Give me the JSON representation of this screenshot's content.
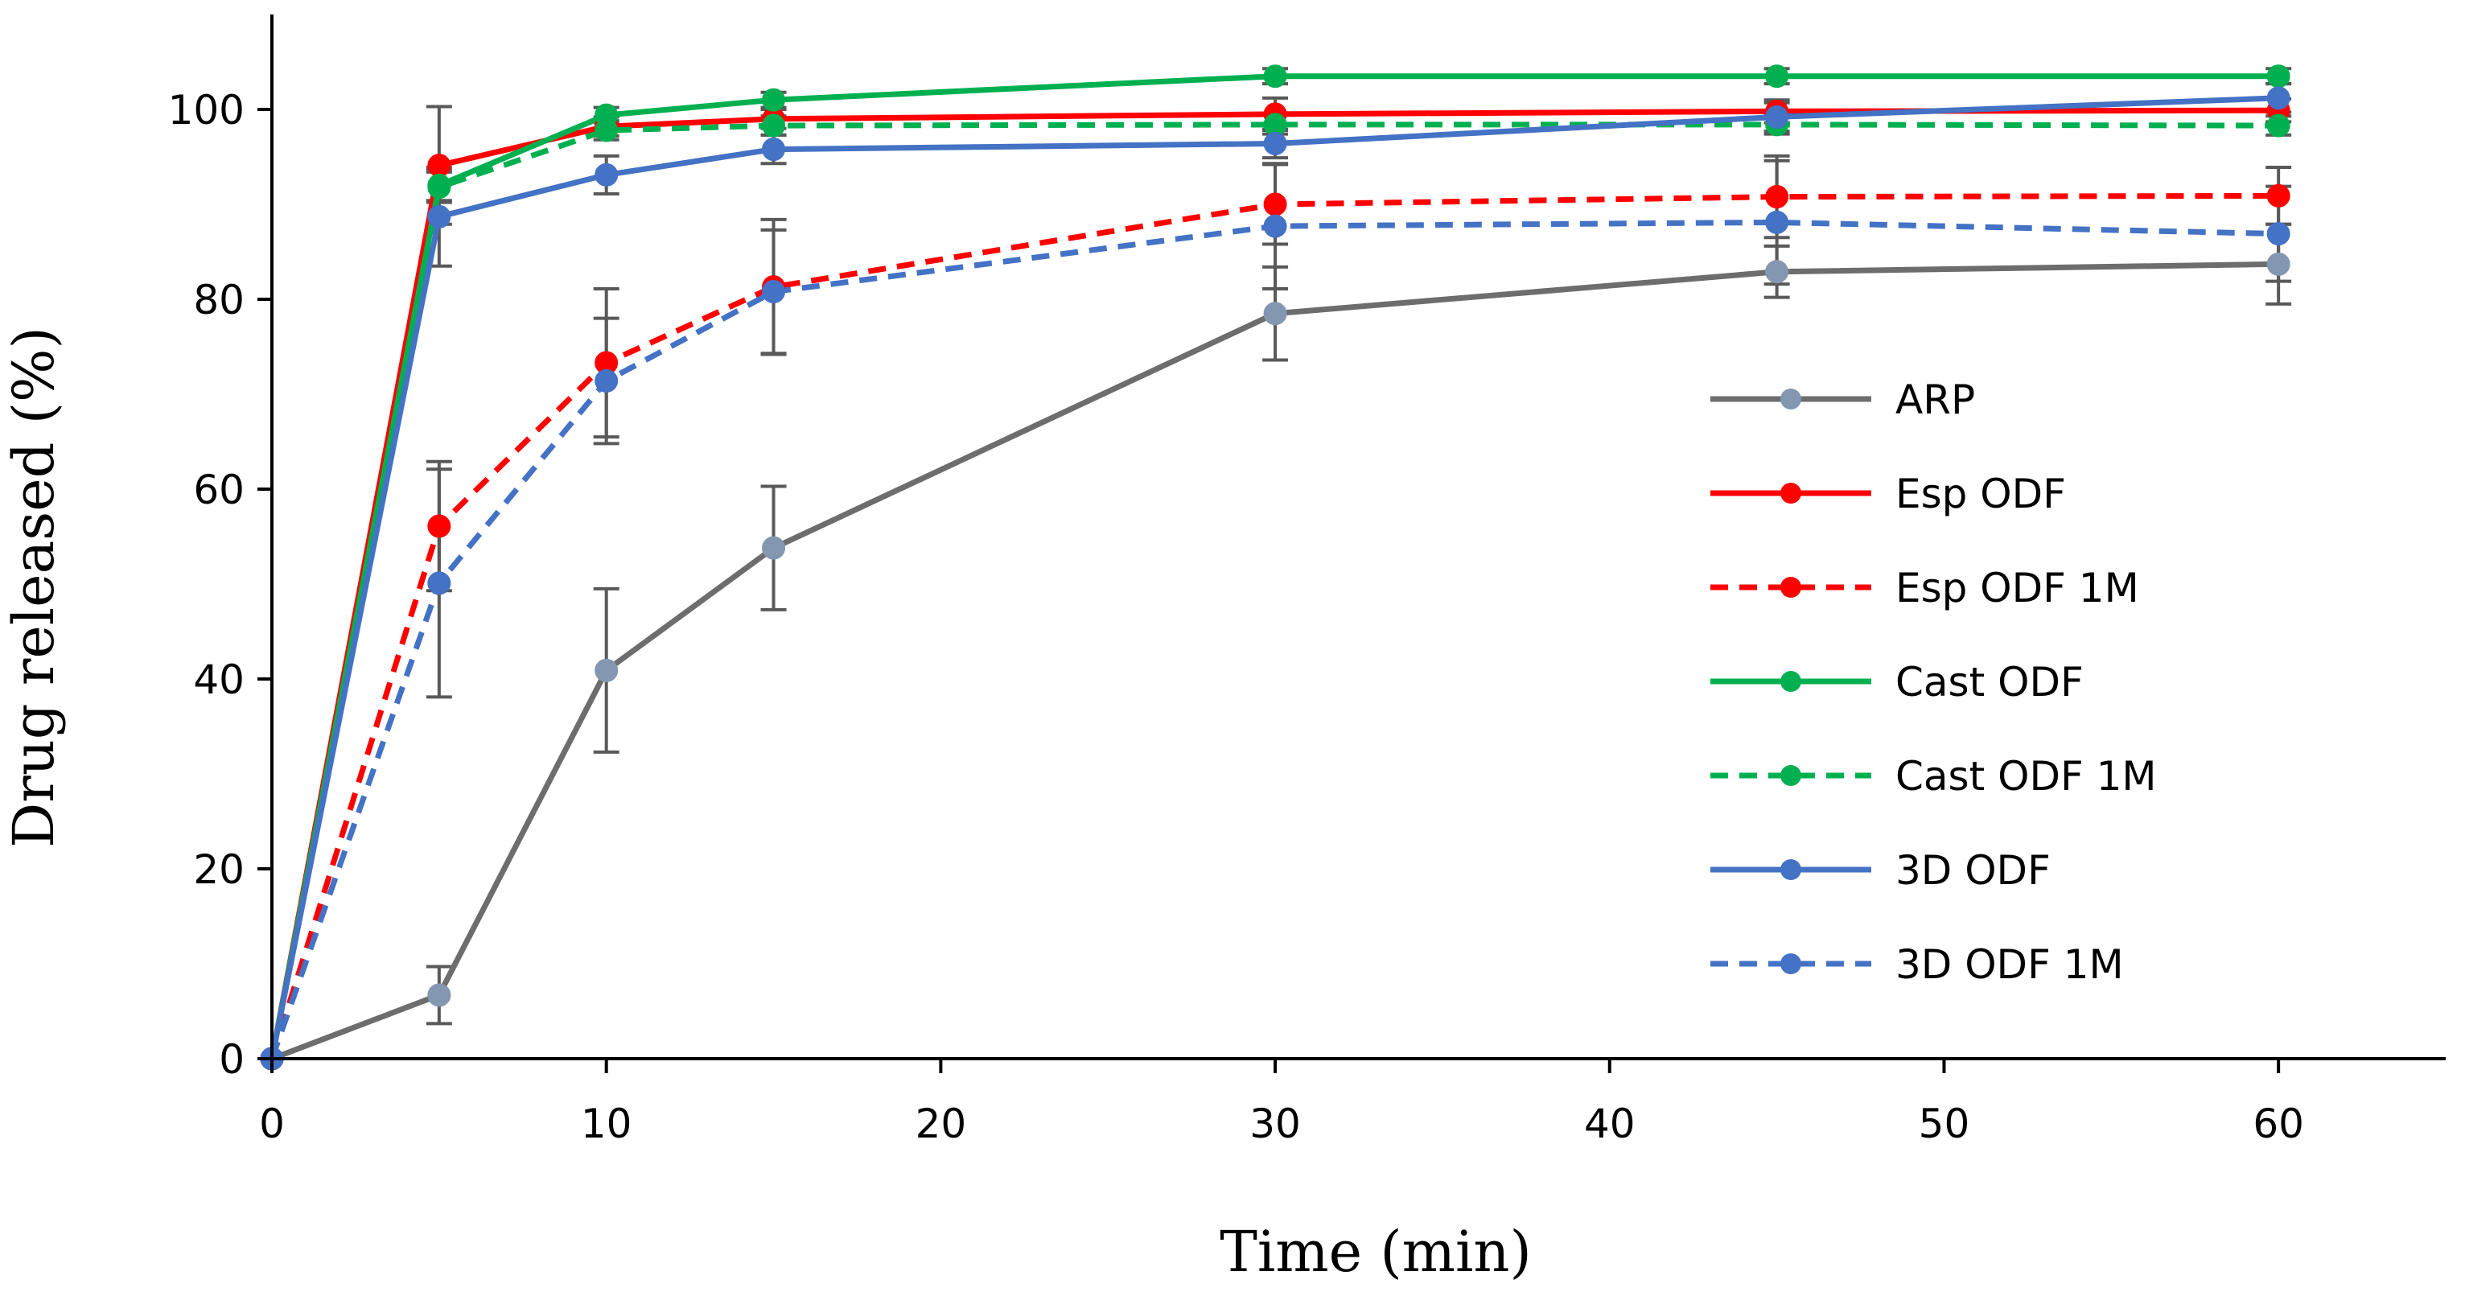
{
  "chart_data": {
    "type": "line",
    "title": "",
    "xlabel": "Time (min)",
    "ylabel": "Drug released (%)",
    "x_ticks": [
      0,
      10,
      20,
      30,
      40,
      50,
      60
    ],
    "y_ticks": [
      0,
      20,
      40,
      60,
      80,
      100
    ],
    "xlim": [
      0,
      65
    ],
    "ylim": [
      0,
      110
    ],
    "grid": false,
    "legend_position": "right",
    "series": [
      {
        "name": "ARP",
        "color": "#6d6d6d",
        "marker_color": "#8497b0",
        "dash": "solid",
        "points": [
          [
            0,
            0
          ],
          [
            5,
            6.7
          ],
          [
            10,
            40.9
          ],
          [
            15,
            53.8
          ],
          [
            30,
            78.5
          ],
          [
            45,
            82.9
          ],
          [
            60,
            83.7
          ]
        ],
        "errors": [
          0,
          3,
          8.6,
          6.5,
          4.9,
          2.7,
          4.2
        ]
      },
      {
        "name": "Esp ODF",
        "color": "#ff0000",
        "marker_color": "#ff0000",
        "dash": "solid",
        "points": [
          [
            0,
            0
          ],
          [
            5,
            94.1
          ],
          [
            10,
            98.2
          ],
          [
            15,
            99
          ],
          [
            30,
            99.5
          ],
          [
            45,
            99.8
          ],
          [
            60,
            99.9
          ]
        ],
        "errors": [
          0,
          6.2,
          1,
          1,
          1.7,
          1.2,
          1.2
        ]
      },
      {
        "name": "Esp ODF 1M",
        "color": "#ff0000",
        "marker_color": "#ff0000",
        "dash": "dashed",
        "points": [
          [
            0,
            0
          ],
          [
            5,
            56.1
          ],
          [
            10,
            73.3
          ],
          [
            15,
            81.3
          ],
          [
            30,
            90
          ],
          [
            45,
            90.8
          ],
          [
            60,
            90.9
          ]
        ],
        "errors": [
          0,
          6.8,
          7.8,
          7.1,
          4.2,
          4.3,
          3
        ]
      },
      {
        "name": "Cast ODF",
        "color": "#00b050",
        "marker_color": "#00b050",
        "dash": "solid",
        "points": [
          [
            0,
            0
          ],
          [
            5,
            92
          ],
          [
            10,
            99.4
          ],
          [
            15,
            101
          ],
          [
            30,
            103.5
          ],
          [
            45,
            103.5
          ],
          [
            60,
            103.5
          ]
        ],
        "errors": [
          0,
          1.6,
          0.8,
          0.8,
          0.8,
          0.8,
          0.8
        ]
      },
      {
        "name": "Cast ODF 1M",
        "color": "#00b050",
        "marker_color": "#00b050",
        "dash": "dashed",
        "points": [
          [
            0,
            0
          ],
          [
            5,
            91.8
          ],
          [
            10,
            97.8
          ],
          [
            15,
            98.3
          ],
          [
            30,
            98.4
          ],
          [
            45,
            98.4
          ],
          [
            60,
            98.3
          ]
        ],
        "errors": [
          0,
          1.6,
          1,
          1,
          1,
          1,
          1
        ]
      },
      {
        "name": "3D ODF",
        "color": "#4472c4",
        "marker_color": "#4472c4",
        "dash": "solid",
        "points": [
          [
            0,
            0
          ],
          [
            5,
            88.7
          ],
          [
            10,
            93.1
          ],
          [
            15,
            95.8
          ],
          [
            30,
            96.4
          ],
          [
            45,
            99.2
          ],
          [
            60,
            101.2
          ]
        ],
        "errors": [
          0,
          5.2,
          2,
          1.5,
          1.5,
          1.5,
          1.5
        ]
      },
      {
        "name": "3D ODF 1M",
        "color": "#4472c4",
        "marker_color": "#4472c4",
        "dash": "dashed",
        "points": [
          [
            0,
            0
          ],
          [
            5,
            50.1
          ],
          [
            10,
            71.4
          ],
          [
            15,
            80.8
          ],
          [
            30,
            87.7
          ],
          [
            45,
            88.1
          ],
          [
            60,
            86.9
          ]
        ],
        "errors": [
          0,
          12,
          6.6,
          6.5,
          6.6,
          6.5,
          5
        ]
      }
    ]
  }
}
